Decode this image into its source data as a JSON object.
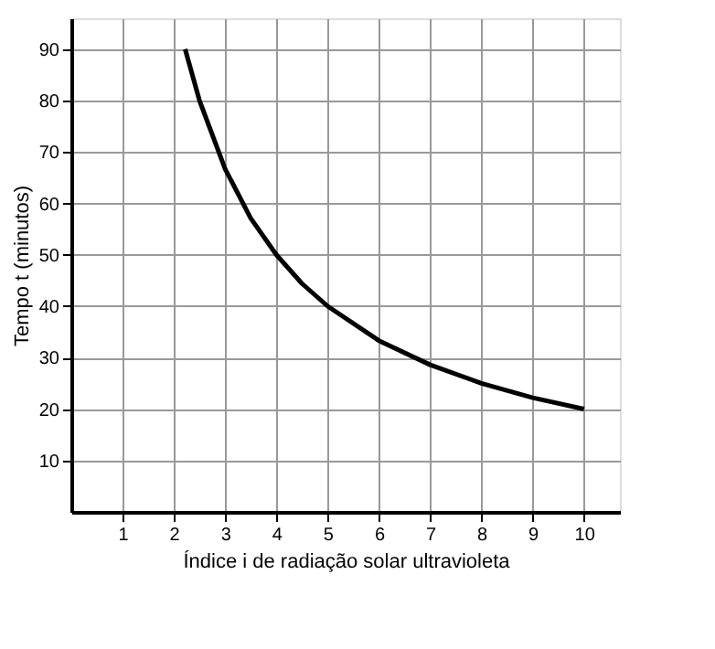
{
  "chart_data": {
    "type": "line",
    "xlabel": "Índice i de radiação solar ultravioleta",
    "ylabel": "Tempo t (minutos)",
    "x": [
      2.22,
      2.5,
      3,
      3.5,
      4,
      4.5,
      5,
      6,
      7,
      8,
      9,
      10
    ],
    "series": [
      {
        "color": "#000000",
        "values": [
          90,
          80,
          66.7,
          57.1,
          50,
          44.4,
          40,
          33.3,
          28.6,
          25,
          22.2,
          20
        ]
      }
    ],
    "xlim": [
      0,
      10.7
    ],
    "ylim": [
      0,
      96
    ],
    "xticks": [
      1,
      2,
      3,
      4,
      5,
      6,
      7,
      8,
      9,
      10
    ],
    "yticks": [
      10,
      20,
      30,
      40,
      50,
      60,
      70,
      80,
      90
    ],
    "grid": true,
    "marker": "none",
    "line_style": "solid"
  }
}
